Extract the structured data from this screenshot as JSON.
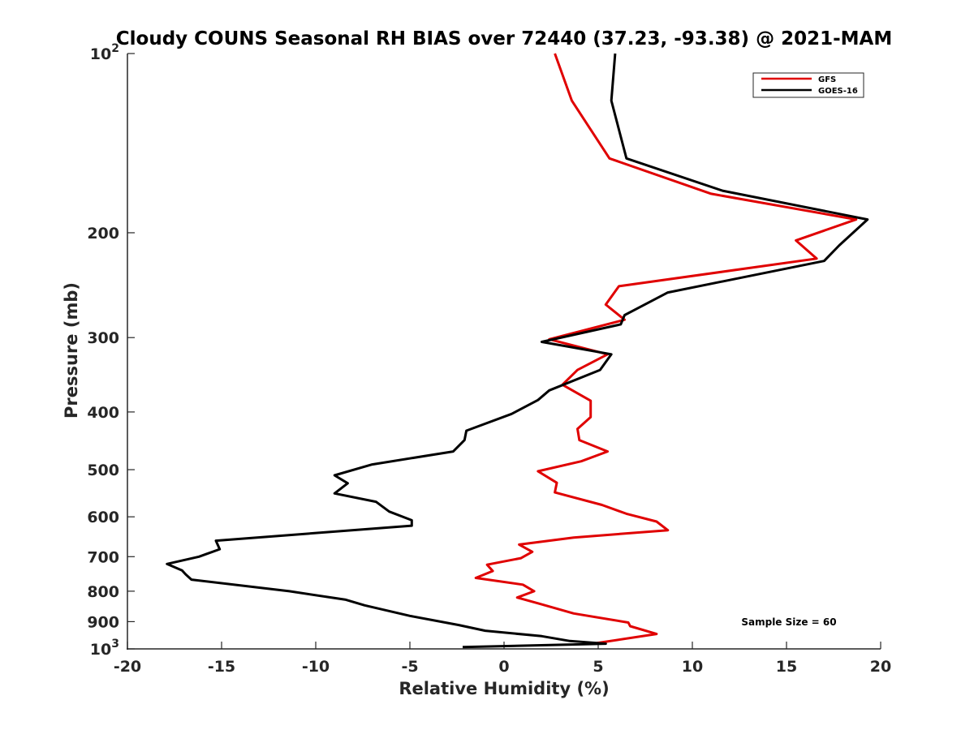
{
  "chart_data": {
    "type": "line",
    "title": "Cloudy COUNS Seasonal RH BIAS over 72440 (37.23, -93.38) @ 2021-MAM",
    "xlabel": "Relative Humidity (%)",
    "ylabel": "Pressure (mb)",
    "xlim": [
      -20,
      20
    ],
    "ylim": [
      100,
      1000
    ],
    "yscale": "log",
    "yreversed": true,
    "x_ticks": [
      "-20",
      "-15",
      "-10",
      "-5",
      "0",
      "5",
      "10",
      "15",
      "20"
    ],
    "y_ticks": [
      {
        "value": 100,
        "label": "10",
        "exp": "2"
      },
      {
        "value": 200,
        "label": "200"
      },
      {
        "value": 300,
        "label": "300"
      },
      {
        "value": 400,
        "label": "400"
      },
      {
        "value": 500,
        "label": "500"
      },
      {
        "value": 600,
        "label": "600"
      },
      {
        "value": 700,
        "label": "700"
      },
      {
        "value": 800,
        "label": "800"
      },
      {
        "value": 900,
        "label": "900"
      },
      {
        "value": 1000,
        "label": "10",
        "exp": "3"
      }
    ],
    "legend_position": "top-right",
    "annotation": "Sample Size = 60",
    "series": [
      {
        "name": "GFS",
        "color": "#e00000",
        "points": [
          [
            2.7,
            100
          ],
          [
            3.6,
            120
          ],
          [
            5.6,
            150
          ],
          [
            11.0,
            172
          ],
          [
            18.7,
            190
          ],
          [
            15.5,
            206
          ],
          [
            16.6,
            221
          ],
          [
            6.1,
            246
          ],
          [
            5.4,
            264
          ],
          [
            6.4,
            280
          ],
          [
            2.4,
            302
          ],
          [
            5.5,
            320
          ],
          [
            3.9,
            340
          ],
          [
            3.1,
            360
          ],
          [
            4.6,
            383
          ],
          [
            4.6,
            408
          ],
          [
            3.9,
            427
          ],
          [
            4.0,
            446
          ],
          [
            5.5,
            466
          ],
          [
            4.1,
            484
          ],
          [
            1.8,
            503
          ],
          [
            2.8,
            526
          ],
          [
            2.7,
            546
          ],
          [
            5.2,
            573
          ],
          [
            6.5,
            593
          ],
          [
            8.1,
            611
          ],
          [
            8.7,
            632
          ],
          [
            3.7,
            650
          ],
          [
            0.8,
            668
          ],
          [
            1.5,
            687
          ],
          [
            0.9,
            704
          ],
          [
            -0.9,
            722
          ],
          [
            -0.6,
            740
          ],
          [
            -1.5,
            760
          ],
          [
            1.0,
            780
          ],
          [
            1.6,
            800
          ],
          [
            0.7,
            820
          ],
          [
            1.9,
            840
          ],
          [
            3.7,
            872
          ],
          [
            6.6,
            903
          ],
          [
            6.7,
            916
          ],
          [
            8.1,
            944
          ],
          [
            4.7,
            980
          ]
        ]
      },
      {
        "name": "GOES-16",
        "color": "#000000",
        "points": [
          [
            5.9,
            100
          ],
          [
            5.7,
            120
          ],
          [
            6.5,
            150
          ],
          [
            11.6,
            170
          ],
          [
            19.3,
            190
          ],
          [
            17.8,
            210
          ],
          [
            17.0,
            223
          ],
          [
            8.7,
            252
          ],
          [
            6.4,
            275
          ],
          [
            6.2,
            285
          ],
          [
            2.0,
            305
          ],
          [
            5.7,
            320
          ],
          [
            5.1,
            340
          ],
          [
            2.4,
            368
          ],
          [
            1.8,
            382
          ],
          [
            0.4,
            403
          ],
          [
            -2.0,
            430
          ],
          [
            -2.1,
            446
          ],
          [
            -2.7,
            466
          ],
          [
            -7.0,
            490
          ],
          [
            -9.0,
            511
          ],
          [
            -8.3,
            527
          ],
          [
            -9.0,
            548
          ],
          [
            -6.8,
            566
          ],
          [
            -6.1,
            588
          ],
          [
            -4.9,
            608
          ],
          [
            -4.9,
            621
          ],
          [
            -15.3,
            658
          ],
          [
            -15.1,
            680
          ],
          [
            -16.2,
            700
          ],
          [
            -17.9,
            720
          ],
          [
            -17.1,
            738
          ],
          [
            -16.9,
            750
          ],
          [
            -16.6,
            765
          ],
          [
            -11.4,
            800
          ],
          [
            -8.4,
            827
          ],
          [
            -7.4,
            845
          ],
          [
            -5.0,
            880
          ],
          [
            -2.4,
            912
          ],
          [
            -1.0,
            932
          ],
          [
            2.0,
            952
          ],
          [
            3.5,
            970
          ],
          [
            5.4,
            980
          ],
          [
            -2.2,
            993
          ]
        ]
      }
    ]
  }
}
